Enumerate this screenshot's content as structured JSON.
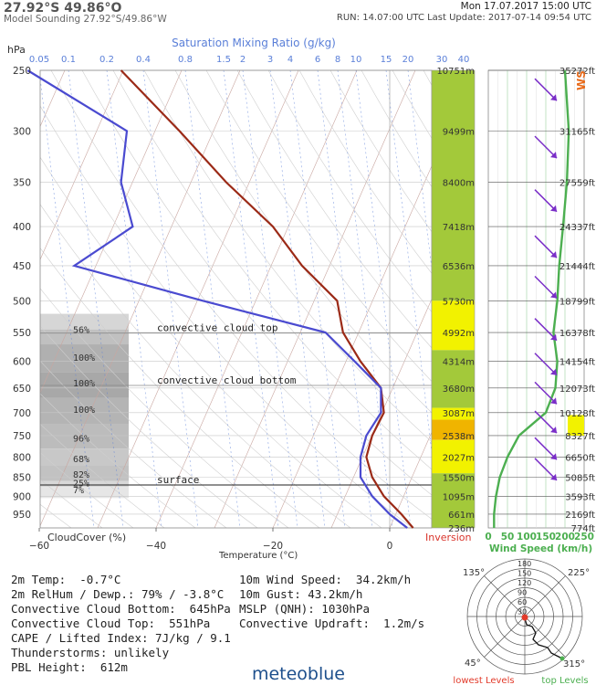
{
  "header": {
    "coords_big": "27.92°S 49.86°O",
    "subtitle": "Model Sounding  27.92°S/49.86°W",
    "datetime": "Mon 17.07.2017  15:00 UTC",
    "run": "RUN: 14.07:00 UTC   Last Update: 2017-07-14 09:54 UTC"
  },
  "labels": {
    "hpa": "hPa",
    "mixing_title": "Saturation Mixing Ratio (g/kg)",
    "temperature_axis": "Temperature (°C)",
    "cloudcover": "CloudCover (%)",
    "inversion": "Inversion",
    "wind_speed_axis": "Wind Speed (km/h)",
    "ws": "WS",
    "conv_top": "convective cloud top",
    "conv_bottom": "convective cloud bottom",
    "surface": "surface",
    "logo": "meteoblue",
    "lowest_levels": "lowest Levels",
    "top_levels": "top Levels"
  },
  "stats_left": [
    "2m Temp:  -0.7°C",
    "2m RelHum / Dewp.: 79% / -3.8°C",
    "Convective Cloud Bottom:  645hPa",
    "Convective Cloud Top:  551hPa",
    "CAPE / Lifted Index: 7J/kg / 9.1",
    "Thunderstorms: unlikely",
    "PBL Height:  612m"
  ],
  "stats_right": [
    "10m Wind Speed:  34.2km/h",
    "10m Gust: 43.2km/h",
    "MSLP (QNH): 1030hPa",
    "Convective Updraft:  1.2m/s"
  ],
  "colors": {
    "temperature": "#9b2a17",
    "dewpoint": "#4a4ad0",
    "wind": "#4caf50",
    "barbs": "#7a2ec8",
    "inversion_green": "#a3c93a",
    "inversion_yellow": "#f2f200",
    "inversion_orange": "#f0b400",
    "mixing": "#5a7fd8"
  },
  "chart_data": {
    "type": "line",
    "title": "Model Sounding",
    "xlabel": "Temperature (°C)",
    "ylabel": "hPa",
    "pressure_levels": [
      250,
      300,
      350,
      400,
      450,
      500,
      550,
      600,
      650,
      700,
      750,
      800,
      850,
      900,
      950
    ],
    "pressure_tick_labels": [
      "250",
      "300",
      "350",
      "400",
      "450",
      "500",
      "550",
      "600",
      "650",
      "700",
      "750",
      "800",
      "850",
      "900",
      "950"
    ],
    "temperature_ticks": [
      -60,
      -40,
      -20,
      0
    ],
    "temperature_tick_labels": [
      "−60",
      "−40",
      "−20",
      "0"
    ],
    "mixing_ratio_ticks": [
      "0.05",
      "0.1",
      "0.2",
      "0.4",
      "0.8",
      "1.5",
      "2",
      "3",
      "4",
      "6",
      "8",
      "10",
      "15",
      "20",
      "30",
      "40"
    ],
    "cloudcover_ticks": [
      "0",
      "50",
      "100"
    ],
    "wind_speed_ticks": [
      "0",
      "50",
      "100",
      "150",
      "200",
      "250"
    ],
    "series": [
      {
        "name": "Temperature",
        "points": [
          [
            250,
            -46
          ],
          [
            300,
            -36
          ],
          [
            350,
            -28
          ],
          [
            400,
            -20
          ],
          [
            450,
            -15
          ],
          [
            500,
            -9
          ],
          [
            550,
            -8
          ],
          [
            600,
            -5
          ],
          [
            650,
            -1.5
          ],
          [
            700,
            -1
          ],
          [
            750,
            -3
          ],
          [
            800,
            -4
          ],
          [
            850,
            -3
          ],
          [
            900,
            -1
          ],
          [
            950,
            2
          ],
          [
            990,
            4
          ]
        ]
      },
      {
        "name": "Dewpoint",
        "points": [
          [
            250,
            -62
          ],
          [
            300,
            -45
          ],
          [
            350,
            -46
          ],
          [
            400,
            -44
          ],
          [
            450,
            -54
          ],
          [
            500,
            -32
          ],
          [
            550,
            -11
          ],
          [
            600,
            -6
          ],
          [
            650,
            -1.5
          ],
          [
            700,
            -1.5
          ],
          [
            750,
            -4
          ],
          [
            800,
            -5
          ],
          [
            850,
            -5
          ],
          [
            900,
            -3
          ],
          [
            950,
            0
          ],
          [
            990,
            3
          ]
        ]
      }
    ],
    "heights_m": [
      "10751m",
      "9499m",
      "8400m",
      "7418m",
      "6536m",
      "5730m",
      "4992m",
      "4314m",
      "3680m",
      "3087m",
      "2538m",
      "2027m",
      "1550m",
      "1095m",
      "661m",
      "236m"
    ],
    "heights_ft": [
      "35272ft",
      "31165ft",
      "27559ft",
      "24337ft",
      "21444ft",
      "18799ft",
      "16378ft",
      "14154ft",
      "12073ft",
      "10128ft",
      "8327ft",
      "6650ft",
      "5085ft",
      "3593ft",
      "2169ft",
      "774ft"
    ],
    "cloud_cover": [
      {
        "pct": "56%",
        "p": 545
      },
      {
        "pct": "100%",
        "p": 592
      },
      {
        "pct": "100%",
        "p": 640
      },
      {
        "pct": "100%",
        "p": 693
      },
      {
        "pct": "96%",
        "p": 755
      },
      {
        "pct": "68%",
        "p": 803
      },
      {
        "pct": "82%",
        "p": 842
      },
      {
        "pct": "25%",
        "p": 864
      },
      {
        "pct": "7%",
        "p": 882
      }
    ],
    "wind_speed_kmh": [
      [
        250,
        200
      ],
      [
        300,
        210
      ],
      [
        350,
        205
      ],
      [
        400,
        195
      ],
      [
        450,
        185
      ],
      [
        500,
        180
      ],
      [
        550,
        170
      ],
      [
        600,
        180
      ],
      [
        650,
        175
      ],
      [
        700,
        150
      ],
      [
        750,
        80
      ],
      [
        800,
        50
      ],
      [
        850,
        30
      ],
      [
        900,
        20
      ],
      [
        950,
        15
      ],
      [
        990,
        15
      ]
    ],
    "hodograph": {
      "rings": [
        "30",
        "60",
        "90",
        "120",
        "150",
        "180"
      ],
      "directions": [
        "135°",
        "225°",
        "45°",
        "315°"
      ]
    }
  }
}
